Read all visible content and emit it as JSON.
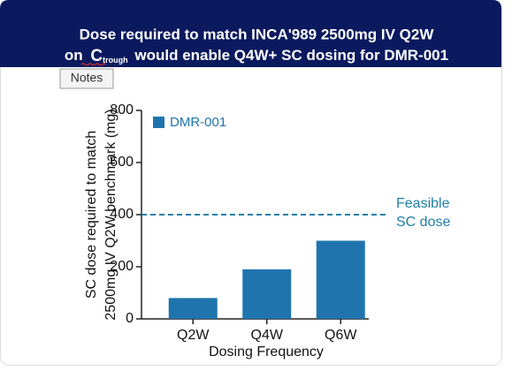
{
  "tooltip": "Notes",
  "chart_data": {
    "type": "bar",
    "title": {
      "line1": "Dose required to match INCA'989 2500mg IV Q2W",
      "line2": [
        "on",
        "C",
        "trough",
        "would enable Q4W+ SC dosing for DMR-001"
      ]
    },
    "x_label": "Dosing Frequency",
    "y_label": [
      "SC dose required to match",
      "2500mg IV Q2W benchmark (mg)"
    ],
    "categories": [
      "Q2W",
      "Q4W",
      "Q6W"
    ],
    "series": [
      {
        "name": "DMR-001",
        "color": "#1f74ad",
        "values": [
          80,
          190,
          300
        ]
      }
    ],
    "ylim": [
      0,
      800
    ],
    "yticks": [
      0,
      200,
      400,
      600,
      800
    ],
    "reference_line": {
      "value": 400,
      "label": [
        "Feasible",
        "SC dose"
      ],
      "color": "#1e7fa6"
    }
  }
}
